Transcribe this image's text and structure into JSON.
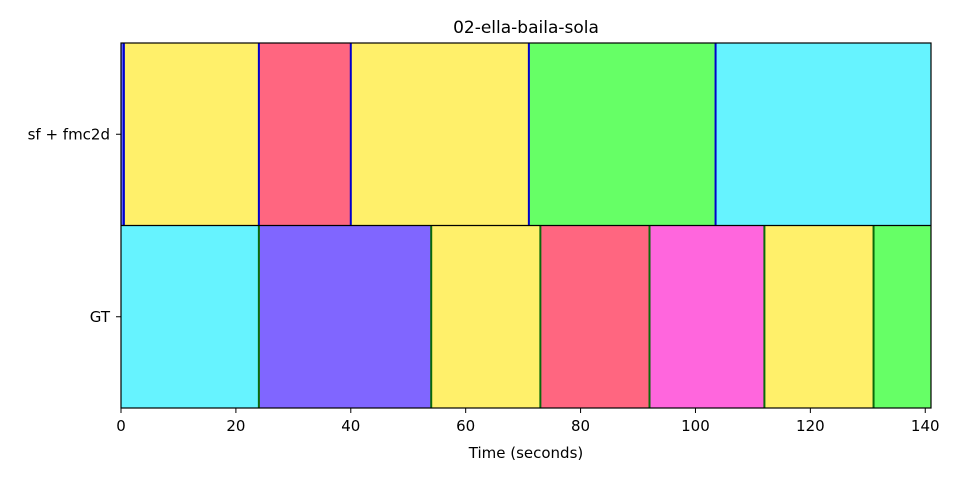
{
  "chart_data": {
    "type": "segment-timeline",
    "title": "02-ella-baila-sola",
    "xlabel": "Time (seconds)",
    "xlim": [
      0,
      141
    ],
    "xticks": [
      0,
      20,
      40,
      60,
      80,
      100,
      120,
      140
    ],
    "rows": [
      {
        "label": "sf + fmc2d",
        "boundary_color": "#0000cc",
        "segments": [
          {
            "start": 0,
            "end": 0.5,
            "color": "#6666ff"
          },
          {
            "start": 0.5,
            "end": 24,
            "color": "#fff06a"
          },
          {
            "start": 24,
            "end": 40,
            "color": "#ff6680"
          },
          {
            "start": 40,
            "end": 71,
            "color": "#fff06a"
          },
          {
            "start": 71,
            "end": 103.5,
            "color": "#66ff66"
          },
          {
            "start": 103.5,
            "end": 141,
            "color": "#66f3ff"
          }
        ]
      },
      {
        "label": "GT",
        "boundary_color": "#0a6a0a",
        "segments": [
          {
            "start": 0,
            "end": 24,
            "color": "#66f3ff"
          },
          {
            "start": 24,
            "end": 54,
            "color": "#8066ff"
          },
          {
            "start": 54,
            "end": 73,
            "color": "#fff06a"
          },
          {
            "start": 73,
            "end": 92,
            "color": "#ff6680"
          },
          {
            "start": 92,
            "end": 112,
            "color": "#ff66dd"
          },
          {
            "start": 112,
            "end": 131,
            "color": "#fff06a"
          },
          {
            "start": 131,
            "end": 141,
            "color": "#66ff66"
          }
        ]
      }
    ]
  }
}
